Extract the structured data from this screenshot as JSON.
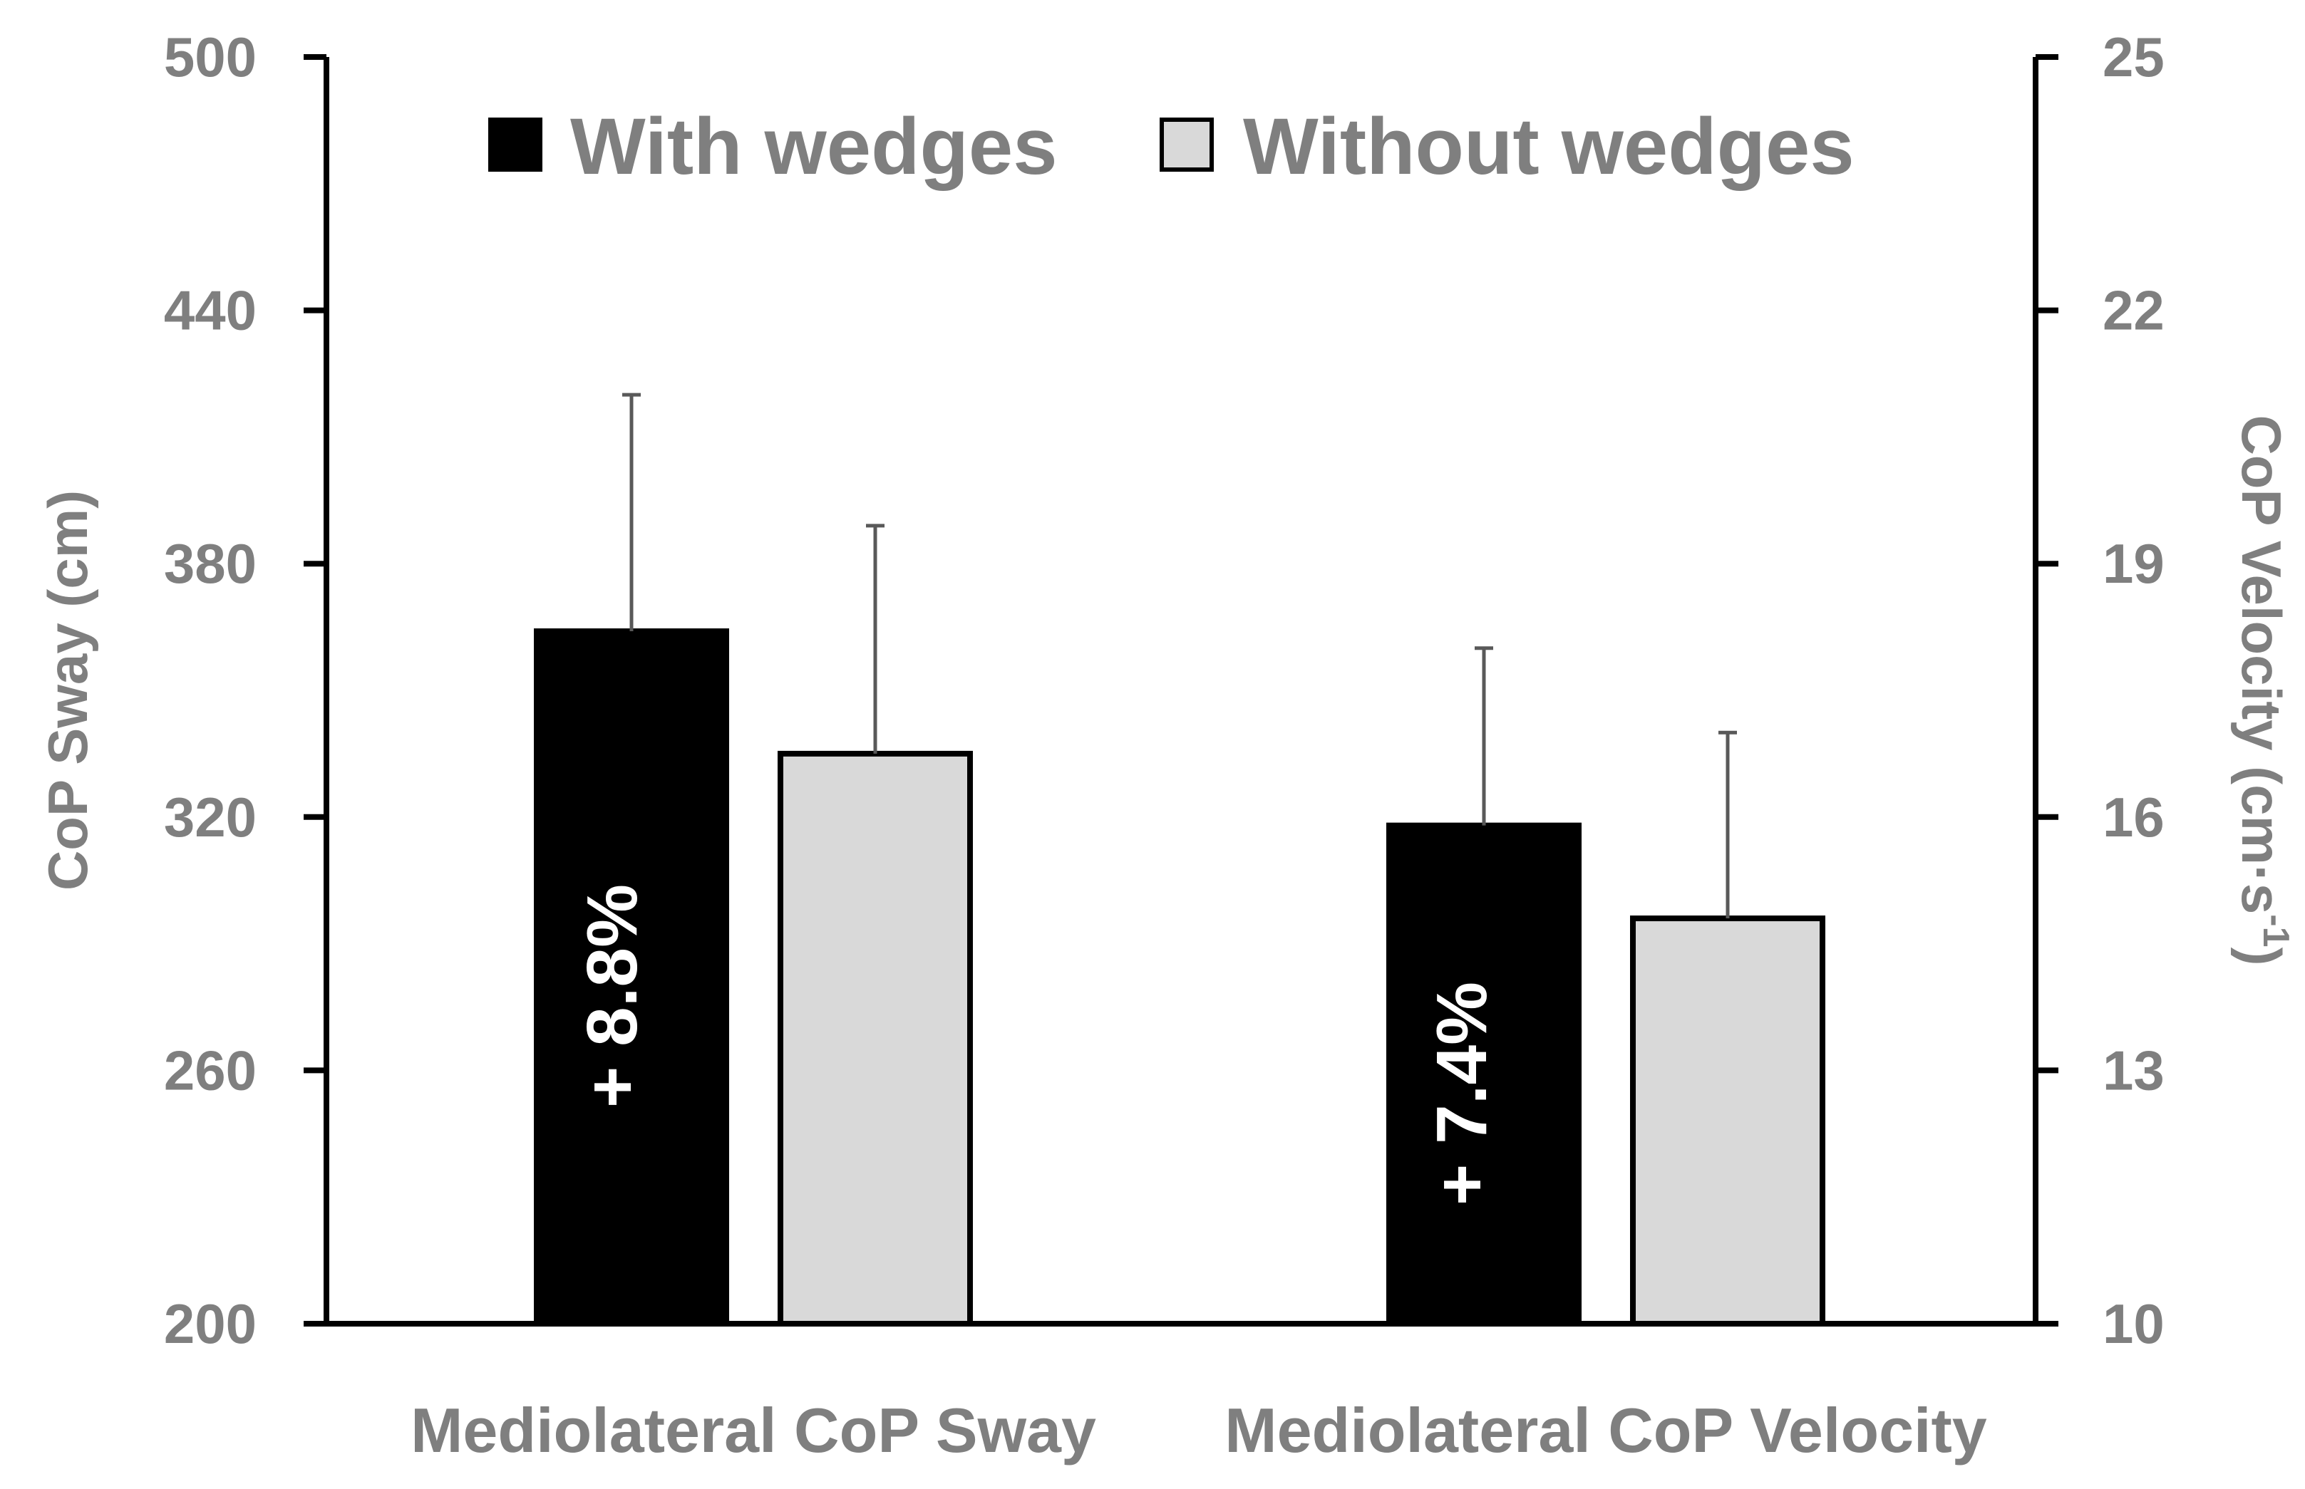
{
  "chart_data": {
    "type": "bar",
    "categories": [
      "Mediolateral CoP Sway",
      "Mediolateral CoP Velocity"
    ],
    "series": [
      {
        "name": "With wedges",
        "color": "#000000",
        "axis": [
          "left",
          "right"
        ],
        "values": [
          364,
          15.9
        ],
        "errors": [
          56,
          2.1
        ]
      },
      {
        "name": "Without wedges",
        "color": "#d9d9d9",
        "axis": [
          "left",
          "right"
        ],
        "values": [
          335,
          14.8
        ],
        "errors": [
          54,
          2.2
        ]
      }
    ],
    "annotations": [
      "+ 8.8%",
      "+ 7.4%"
    ],
    "y_left": {
      "label": "CoP Sway (cm)",
      "range": [
        200,
        500
      ],
      "ticks": [
        200,
        260,
        320,
        380,
        440,
        500
      ]
    },
    "y_right": {
      "label_main": "CoP Velocity (cm·s",
      "label_sup": "-1",
      "label_end": ")",
      "range": [
        10,
        25
      ],
      "ticks": [
        10,
        13,
        16,
        19,
        22,
        25
      ]
    },
    "grid": false,
    "legend": "top-center"
  }
}
